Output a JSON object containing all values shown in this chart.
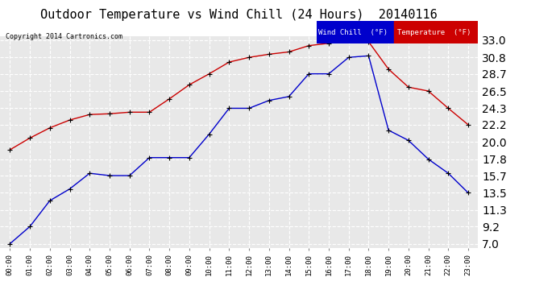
{
  "title": "Outdoor Temperature vs Wind Chill (24 Hours)  20140116",
  "copyright": "Copyright 2014 Cartronics.com",
  "x_labels": [
    "00:00",
    "01:00",
    "02:00",
    "03:00",
    "04:00",
    "05:00",
    "06:00",
    "07:00",
    "08:00",
    "09:00",
    "10:00",
    "11:00",
    "12:00",
    "13:00",
    "14:00",
    "15:00",
    "16:00",
    "17:00",
    "18:00",
    "19:00",
    "20:00",
    "21:00",
    "22:00",
    "23:00"
  ],
  "y_ticks": [
    7.0,
    9.2,
    11.3,
    13.5,
    15.7,
    17.8,
    20.0,
    22.2,
    24.3,
    26.5,
    28.7,
    30.8,
    33.0
  ],
  "temperature": [
    19.0,
    20.5,
    21.8,
    22.8,
    23.5,
    23.6,
    23.8,
    23.8,
    25.5,
    27.3,
    28.7,
    30.2,
    30.8,
    31.2,
    31.5,
    32.3,
    32.6,
    33.0,
    32.8,
    29.3,
    27.0,
    26.5,
    24.3,
    22.2
  ],
  "wind_chill": [
    7.0,
    9.2,
    12.5,
    14.0,
    16.0,
    15.7,
    15.7,
    18.0,
    18.0,
    18.0,
    21.0,
    24.3,
    24.3,
    25.3,
    25.8,
    28.7,
    28.7,
    30.8,
    31.0,
    21.5,
    20.2,
    17.8,
    16.0,
    13.5
  ],
  "temp_color": "#cc0000",
  "wc_color": "#0000cc",
  "background_color": "#ffffff",
  "plot_bg_color": "#e8e8e8",
  "grid_color": "#ffffff",
  "title_fontsize": 11,
  "legend_wc_bg": "#0000cc",
  "legend_temp_bg": "#cc0000"
}
